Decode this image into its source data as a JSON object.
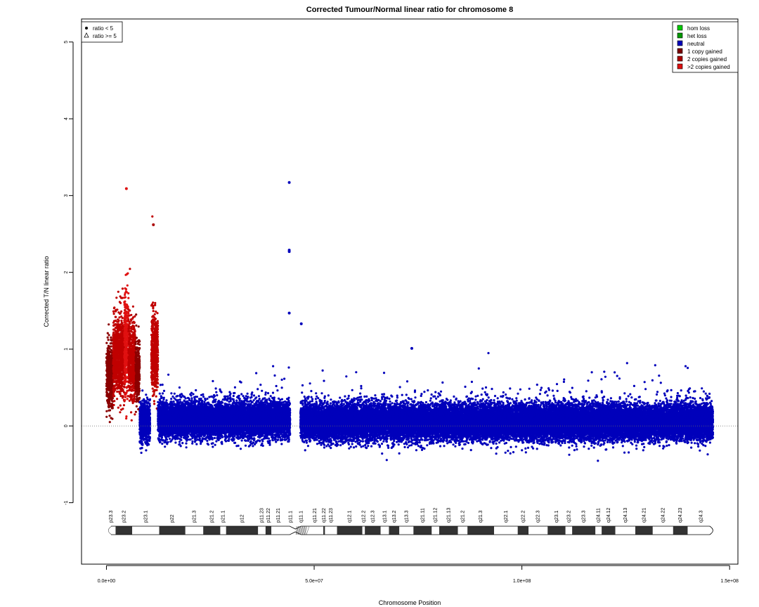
{
  "chart_data": {
    "type": "scatter",
    "title": "Corrected Tumour/Normal linear ratio for chromosome  8",
    "xlabel": "Chromosome Position",
    "ylabel": "Corrected T/N linear ratio",
    "xlim": [
      -6000000,
      152000000
    ],
    "ylim": [
      -1.8,
      5.3
    ],
    "x_ticks": [
      {
        "value": 0,
        "label": "0.0e+00"
      },
      {
        "value": 50000000,
        "label": "5.0e+07"
      },
      {
        "value": 100000000,
        "label": "1.0e+08"
      },
      {
        "value": 150000000,
        "label": "1.5e+08"
      }
    ],
    "y_ticks": [
      {
        "value": -1,
        "label": "-1"
      },
      {
        "value": 0,
        "label": "0"
      },
      {
        "value": 1,
        "label": "1"
      },
      {
        "value": 2,
        "label": "2"
      },
      {
        "value": 3,
        "label": "3"
      },
      {
        "value": 4,
        "label": "4"
      },
      {
        "value": 5,
        "label": "5"
      }
    ],
    "reference_line": {
      "y": 0,
      "style": "dotted"
    },
    "shape_legend": {
      "position": "top-left",
      "entries": [
        {
          "symbol": "dot",
          "label": "ratio < 5"
        },
        {
          "symbol": "triangle",
          "label": "ratio >= 5"
        }
      ]
    },
    "state_legend": {
      "position": "top-right",
      "entries": [
        {
          "label": "hom loss",
          "color": "#00cc00"
        },
        {
          "label": "het loss",
          "color": "#009900"
        },
        {
          "label": "neutral",
          "color": "#0000bb"
        },
        {
          "label": "1 copy gained",
          "color": "#7a0000"
        },
        {
          "label": "2 copies gained",
          "color": "#aa0000"
        },
        {
          "label": ">2 copies gained",
          "color": "#dd1010"
        }
      ]
    },
    "segments": [
      {
        "state": "1 copy gained",
        "color": "#8b0000",
        "x_start": 0,
        "x_end": 1600000,
        "median": 0.65,
        "spread": 0.35
      },
      {
        "state": "2 copies gained",
        "color": "#c00000",
        "x_start": 1600000,
        "x_end": 4500000,
        "median": 0.9,
        "spread": 0.45
      },
      {
        "state": ">2 copies gained",
        "color": "#e01010",
        "x_start": 4300000,
        "x_end": 5300000,
        "median": 1.1,
        "spread": 0.6
      },
      {
        "state": "2 copies gained",
        "color": "#c00000",
        "x_start": 5300000,
        "x_end": 7000000,
        "median": 0.85,
        "spread": 0.45
      },
      {
        "state": "1 copy gained",
        "color": "#8b0000",
        "x_start": 7000000,
        "x_end": 8000000,
        "median": 0.7,
        "spread": 0.35
      },
      {
        "state": "neutral",
        "color": "#0000bb",
        "x_start": 8000000,
        "x_end": 10500000,
        "median": 0.05,
        "spread": 0.22
      },
      {
        "state": "2 copies gained",
        "color": "#c00000",
        "x_start": 10800000,
        "x_end": 12400000,
        "median": 0.95,
        "spread": 0.45
      },
      {
        "state": "neutral",
        "color": "#0000bb",
        "x_start": 12400000,
        "x_end": 44200000,
        "median": 0.08,
        "spread": 0.2
      },
      {
        "state": "neutral",
        "color": "#0000bb",
        "x_start": 46700000,
        "x_end": 146000000,
        "median": 0.05,
        "spread": 0.2
      }
    ],
    "notable_points": [
      {
        "x": 44000000,
        "y": 3.17,
        "state": "neutral"
      },
      {
        "x": 44000000,
        "y": 2.29,
        "state": "neutral"
      },
      {
        "x": 44000000,
        "y": 2.27,
        "state": "neutral"
      },
      {
        "x": 44000000,
        "y": 1.47,
        "state": "neutral"
      },
      {
        "x": 46900000,
        "y": 1.33,
        "state": "neutral"
      },
      {
        "x": 4800000,
        "y": 3.09,
        "state": ">2 copies gained"
      },
      {
        "x": 11300000,
        "y": 2.62,
        "state": "2 copies gained"
      },
      {
        "x": 73500000,
        "y": 1.01,
        "state": "neutral"
      }
    ],
    "cytobands": [
      {
        "name": "p23.3",
        "start": 0,
        "end": 2200000,
        "stain": "gneg"
      },
      {
        "name": "p23.2",
        "start": 2200000,
        "end": 6200000,
        "stain": "gpos"
      },
      {
        "name": "p23.1",
        "start": 6200000,
        "end": 12700000,
        "stain": "gneg"
      },
      {
        "name": "p22",
        "start": 12700000,
        "end": 19000000,
        "stain": "gpos"
      },
      {
        "name": "p21.3",
        "start": 19000000,
        "end": 23300000,
        "stain": "gneg"
      },
      {
        "name": "p21.2",
        "start": 23300000,
        "end": 27400000,
        "stain": "gpos"
      },
      {
        "name": "p21.1",
        "start": 27400000,
        "end": 28800000,
        "stain": "gneg"
      },
      {
        "name": "p12",
        "start": 28800000,
        "end": 36500000,
        "stain": "gpos"
      },
      {
        "name": "p11.23",
        "start": 36500000,
        "end": 38300000,
        "stain": "gneg"
      },
      {
        "name": "p11.22",
        "start": 38300000,
        "end": 39700000,
        "stain": "gpos"
      },
      {
        "name": "p11.21",
        "start": 39700000,
        "end": 43100000,
        "stain": "gneg"
      },
      {
        "name": "p11.1",
        "start": 43100000,
        "end": 45600000,
        "stain": "acen"
      },
      {
        "name": "q11.1",
        "start": 45600000,
        "end": 48100000,
        "stain": "gvar"
      },
      {
        "name": "q11.21",
        "start": 48100000,
        "end": 52200000,
        "stain": "gneg"
      },
      {
        "name": "q11.22",
        "start": 52200000,
        "end": 52600000,
        "stain": "gpos"
      },
      {
        "name": "q11.23",
        "start": 52600000,
        "end": 55500000,
        "stain": "gneg"
      },
      {
        "name": "q12.1",
        "start": 55500000,
        "end": 61600000,
        "stain": "gpos"
      },
      {
        "name": "q12.2",
        "start": 61600000,
        "end": 62200000,
        "stain": "gneg"
      },
      {
        "name": "q12.3",
        "start": 62200000,
        "end": 66000000,
        "stain": "gpos"
      },
      {
        "name": "q13.1",
        "start": 66000000,
        "end": 68000000,
        "stain": "gneg"
      },
      {
        "name": "q13.2",
        "start": 68000000,
        "end": 70500000,
        "stain": "gpos"
      },
      {
        "name": "q13.3",
        "start": 70500000,
        "end": 73900000,
        "stain": "gneg"
      },
      {
        "name": "q21.11",
        "start": 73900000,
        "end": 78300000,
        "stain": "gpos"
      },
      {
        "name": "q21.12",
        "start": 78300000,
        "end": 80100000,
        "stain": "gneg"
      },
      {
        "name": "q21.13",
        "start": 80100000,
        "end": 84600000,
        "stain": "gpos"
      },
      {
        "name": "q21.2",
        "start": 84600000,
        "end": 86900000,
        "stain": "gneg"
      },
      {
        "name": "q21.3",
        "start": 86900000,
        "end": 93300000,
        "stain": "gpos"
      },
      {
        "name": "q22.1",
        "start": 93300000,
        "end": 99000000,
        "stain": "gneg"
      },
      {
        "name": "q22.2",
        "start": 99000000,
        "end": 101600000,
        "stain": "gpos"
      },
      {
        "name": "q22.3",
        "start": 101600000,
        "end": 106200000,
        "stain": "gneg"
      },
      {
        "name": "q23.1",
        "start": 106200000,
        "end": 110500000,
        "stain": "gpos"
      },
      {
        "name": "q23.2",
        "start": 110500000,
        "end": 112100000,
        "stain": "gneg"
      },
      {
        "name": "q23.3",
        "start": 112100000,
        "end": 117700000,
        "stain": "gpos"
      },
      {
        "name": "q24.11",
        "start": 117700000,
        "end": 119200000,
        "stain": "gneg"
      },
      {
        "name": "q24.12",
        "start": 119200000,
        "end": 122500000,
        "stain": "gpos"
      },
      {
        "name": "q24.13",
        "start": 122500000,
        "end": 127300000,
        "stain": "gneg"
      },
      {
        "name": "q24.21",
        "start": 127300000,
        "end": 131500000,
        "stain": "gpos"
      },
      {
        "name": "q24.22",
        "start": 131500000,
        "end": 136400000,
        "stain": "gneg"
      },
      {
        "name": "q24.23",
        "start": 136400000,
        "end": 139900000,
        "stain": "gpos"
      },
      {
        "name": "q24.3",
        "start": 139900000,
        "end": 146400000,
        "stain": "gneg"
      }
    ]
  }
}
